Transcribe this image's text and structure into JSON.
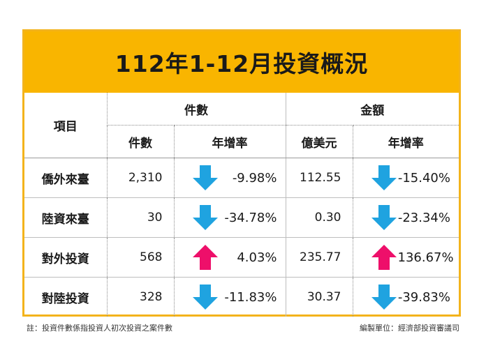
{
  "title": "112年1-12月投資概況",
  "header": {
    "item": "項目",
    "group_count": "件數",
    "group_amount": "金額",
    "col_count": "件數",
    "col_count_rate": "年增率",
    "col_amount": "億美元",
    "col_amount_rate": "年增率"
  },
  "rows": [
    {
      "name": "僑外來臺",
      "count": "2,310",
      "count_rate": "-9.98%",
      "count_dir": "down",
      "amount": "112.55",
      "amount_rate": "-15.40%",
      "amount_dir": "down"
    },
    {
      "name": "陸資來臺",
      "count": "30",
      "count_rate": "-34.78%",
      "count_dir": "down",
      "amount": "0.30",
      "amount_rate": "-23.34%",
      "amount_dir": "down"
    },
    {
      "name": "對外投資",
      "count": "568",
      "count_rate": "4.03%",
      "count_dir": "up",
      "amount": "235.77",
      "amount_rate": "136.67%",
      "amount_dir": "up"
    },
    {
      "name": "對陸投資",
      "count": "328",
      "count_rate": "-11.83%",
      "count_dir": "down",
      "amount": "30.37",
      "amount_rate": "-39.83%",
      "amount_dir": "down"
    }
  ],
  "colors": {
    "title_bg": "#f9b500",
    "frame": "#f3b31b",
    "down_arrow": "#1fa3e0",
    "up_arrow": "#ee0f6a"
  },
  "footer": {
    "note": "註：投資件數係指投資人初次投資之案件數",
    "source": "編製單位：經濟部投資審議司"
  }
}
